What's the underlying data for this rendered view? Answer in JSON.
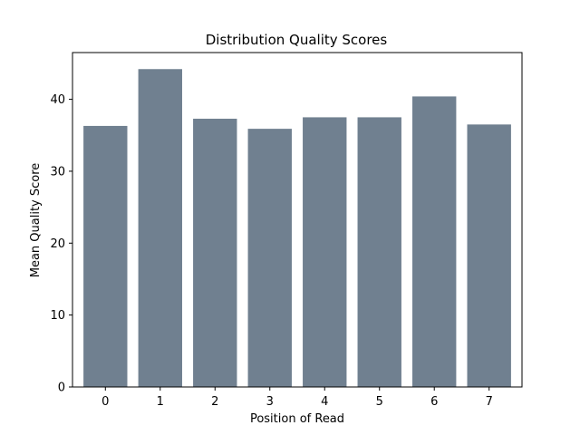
{
  "chart_data": {
    "type": "bar",
    "title": "Distribution Quality Scores",
    "xlabel": "Position of Read",
    "ylabel": "Mean Quality Score",
    "categories": [
      "0",
      "1",
      "2",
      "3",
      "4",
      "5",
      "6",
      "7"
    ],
    "values": [
      36.3,
      44.2,
      37.3,
      35.9,
      37.5,
      37.5,
      40.4,
      36.5
    ],
    "ylim": [
      0,
      46.5
    ],
    "yticks": [
      0,
      10,
      20,
      30,
      40
    ],
    "bar_color": "#708090",
    "grid": false,
    "legend": "none"
  }
}
